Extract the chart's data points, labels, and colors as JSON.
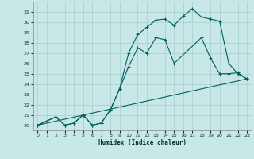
{
  "xlabel": "Humidex (Indice chaleur)",
  "xlim": [
    -0.5,
    23.5
  ],
  "ylim": [
    19.5,
    32.0
  ],
  "yticks": [
    20,
    21,
    22,
    23,
    24,
    25,
    26,
    27,
    28,
    29,
    30,
    31
  ],
  "xticks": [
    0,
    1,
    2,
    3,
    4,
    5,
    6,
    7,
    8,
    9,
    10,
    11,
    12,
    13,
    14,
    15,
    16,
    17,
    18,
    19,
    20,
    21,
    22,
    23
  ],
  "bg_color": "#c8e8e8",
  "grid_color": "#a8cccc",
  "line_color": "#006060",
  "line1_x": [
    0,
    2,
    3,
    4,
    5,
    6,
    7,
    8,
    9,
    10,
    11,
    12,
    13,
    14,
    15,
    16,
    17,
    18,
    19,
    20,
    21,
    22,
    23
  ],
  "line1_y": [
    20.0,
    20.8,
    20.0,
    20.2,
    21.0,
    20.0,
    20.2,
    21.5,
    23.5,
    27.0,
    28.8,
    29.5,
    30.2,
    30.3,
    29.7,
    30.6,
    31.3,
    30.5,
    30.3,
    30.1,
    26.0,
    25.0,
    24.5
  ],
  "line2_x": [
    0,
    2,
    3,
    4,
    5,
    6,
    7,
    8,
    9,
    10,
    11,
    12,
    13,
    14,
    15,
    18,
    19,
    20,
    21,
    22,
    23
  ],
  "line2_y": [
    20.0,
    20.8,
    20.0,
    20.2,
    21.0,
    20.0,
    20.2,
    21.5,
    23.5,
    25.7,
    27.5,
    27.0,
    28.5,
    28.3,
    26.0,
    28.5,
    26.5,
    25.0,
    25.0,
    25.1,
    24.5
  ],
  "line3_x": [
    0,
    23
  ],
  "line3_y": [
    20.0,
    24.5
  ]
}
